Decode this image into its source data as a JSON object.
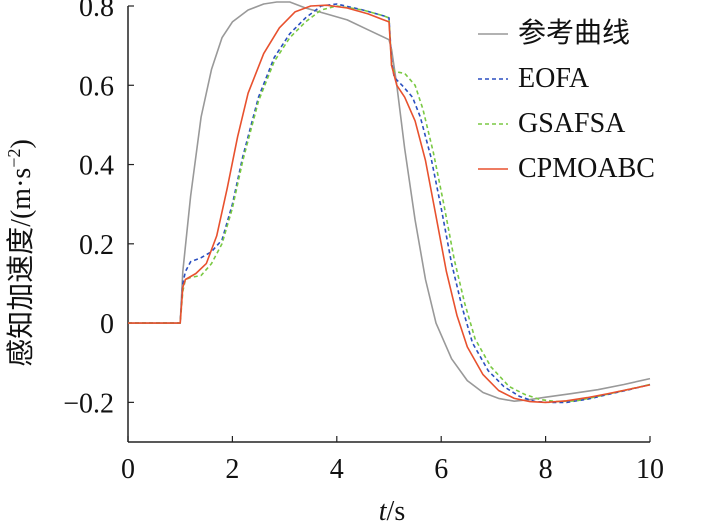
{
  "chart_data": {
    "type": "line",
    "xlabel_italic": "t",
    "xlabel_unit": "/s",
    "ylabel_text": "感知加速度/(m·s",
    "ylabel_sup": "−2",
    "ylabel_close": ")",
    "xlim": [
      0,
      10
    ],
    "ylim": [
      -0.3,
      0.8
    ],
    "x_ticks": [
      0,
      2,
      4,
      6,
      8,
      10
    ],
    "x_tick_labels": [
      "0",
      "2",
      "4",
      "6",
      "8",
      "10"
    ],
    "y_ticks": [
      -0.2,
      0,
      0.2,
      0.4,
      0.6,
      0.8
    ],
    "y_tick_labels": [
      "−0.2",
      "0",
      "0.2",
      "0.4",
      "0.6",
      "0.8"
    ],
    "grid": false,
    "legend_position": "top-right",
    "series": [
      {
        "name": "参考曲线",
        "color": "#999999",
        "dash": "solid",
        "points": [
          [
            0,
            0
          ],
          [
            1.0,
            0
          ],
          [
            1.05,
            0.13
          ],
          [
            1.2,
            0.32
          ],
          [
            1.4,
            0.52
          ],
          [
            1.6,
            0.64
          ],
          [
            1.8,
            0.72
          ],
          [
            2.0,
            0.76
          ],
          [
            2.3,
            0.79
          ],
          [
            2.6,
            0.805
          ],
          [
            2.85,
            0.81
          ],
          [
            3.1,
            0.81
          ],
          [
            3.4,
            0.795
          ],
          [
            3.8,
            0.78
          ],
          [
            4.2,
            0.765
          ],
          [
            4.6,
            0.74
          ],
          [
            5.0,
            0.715
          ],
          [
            5.05,
            0.69
          ],
          [
            5.15,
            0.6
          ],
          [
            5.3,
            0.44
          ],
          [
            5.5,
            0.26
          ],
          [
            5.7,
            0.11
          ],
          [
            5.9,
            0.0
          ],
          [
            6.2,
            -0.09
          ],
          [
            6.5,
            -0.145
          ],
          [
            6.8,
            -0.175
          ],
          [
            7.1,
            -0.19
          ],
          [
            7.4,
            -0.197
          ],
          [
            7.7,
            -0.193
          ],
          [
            8.0,
            -0.187
          ],
          [
            8.5,
            -0.178
          ],
          [
            9.0,
            -0.168
          ],
          [
            9.5,
            -0.155
          ],
          [
            10.0,
            -0.14
          ]
        ]
      },
      {
        "name": "EOFA",
        "color": "#2b4fc0",
        "dash": "dashed",
        "points": [
          [
            0,
            0
          ],
          [
            1.0,
            0
          ],
          [
            1.05,
            0.1
          ],
          [
            1.1,
            0.13
          ],
          [
            1.2,
            0.155
          ],
          [
            1.4,
            0.165
          ],
          [
            1.6,
            0.18
          ],
          [
            1.8,
            0.21
          ],
          [
            2.0,
            0.3
          ],
          [
            2.2,
            0.42
          ],
          [
            2.5,
            0.57
          ],
          [
            2.8,
            0.67
          ],
          [
            3.1,
            0.73
          ],
          [
            3.4,
            0.77
          ],
          [
            3.7,
            0.8
          ],
          [
            4.0,
            0.805
          ],
          [
            4.5,
            0.79
          ],
          [
            4.9,
            0.775
          ],
          [
            5.0,
            0.77
          ],
          [
            5.05,
            0.66
          ],
          [
            5.1,
            0.62
          ],
          [
            5.25,
            0.6
          ],
          [
            5.45,
            0.57
          ],
          [
            5.6,
            0.52
          ],
          [
            5.8,
            0.42
          ],
          [
            6.0,
            0.29
          ],
          [
            6.2,
            0.15
          ],
          [
            6.4,
            0.04
          ],
          [
            6.6,
            -0.05
          ],
          [
            6.9,
            -0.12
          ],
          [
            7.2,
            -0.16
          ],
          [
            7.5,
            -0.185
          ],
          [
            7.8,
            -0.198
          ],
          [
            8.1,
            -0.2
          ],
          [
            8.4,
            -0.2
          ],
          [
            8.8,
            -0.192
          ],
          [
            9.2,
            -0.18
          ],
          [
            9.6,
            -0.168
          ],
          [
            10.0,
            -0.155
          ]
        ]
      },
      {
        "name": "GSAFSA",
        "color": "#7ac943",
        "dash": "dashed",
        "points": [
          [
            0,
            0
          ],
          [
            1.0,
            0
          ],
          [
            1.05,
            0.08
          ],
          [
            1.1,
            0.11
          ],
          [
            1.2,
            0.115
          ],
          [
            1.4,
            0.12
          ],
          [
            1.6,
            0.15
          ],
          [
            1.8,
            0.2
          ],
          [
            2.0,
            0.29
          ],
          [
            2.2,
            0.41
          ],
          [
            2.5,
            0.56
          ],
          [
            2.8,
            0.66
          ],
          [
            3.1,
            0.72
          ],
          [
            3.4,
            0.76
          ],
          [
            3.7,
            0.79
          ],
          [
            4.0,
            0.8
          ],
          [
            4.5,
            0.79
          ],
          [
            4.9,
            0.775
          ],
          [
            5.0,
            0.77
          ],
          [
            5.05,
            0.65
          ],
          [
            5.1,
            0.635
          ],
          [
            5.3,
            0.63
          ],
          [
            5.5,
            0.6
          ],
          [
            5.65,
            0.54
          ],
          [
            5.85,
            0.43
          ],
          [
            6.05,
            0.3
          ],
          [
            6.25,
            0.16
          ],
          [
            6.45,
            0.05
          ],
          [
            6.65,
            -0.04
          ],
          [
            6.95,
            -0.11
          ],
          [
            7.3,
            -0.16
          ],
          [
            7.6,
            -0.18
          ],
          [
            7.9,
            -0.193
          ],
          [
            8.2,
            -0.198
          ],
          [
            8.6,
            -0.196
          ],
          [
            9.0,
            -0.185
          ],
          [
            9.5,
            -0.17
          ],
          [
            10.0,
            -0.155
          ]
        ]
      },
      {
        "name": "CPMOABC",
        "color": "#e8512e",
        "dash": "solid",
        "points": [
          [
            0,
            0
          ],
          [
            1.0,
            0
          ],
          [
            1.05,
            0.09
          ],
          [
            1.1,
            0.11
          ],
          [
            1.3,
            0.125
          ],
          [
            1.5,
            0.15
          ],
          [
            1.7,
            0.22
          ],
          [
            1.9,
            0.34
          ],
          [
            2.1,
            0.47
          ],
          [
            2.3,
            0.58
          ],
          [
            2.6,
            0.68
          ],
          [
            2.9,
            0.745
          ],
          [
            3.2,
            0.785
          ],
          [
            3.5,
            0.8
          ],
          [
            3.8,
            0.802
          ],
          [
            4.2,
            0.795
          ],
          [
            4.6,
            0.78
          ],
          [
            5.0,
            0.76
          ],
          [
            5.05,
            0.65
          ],
          [
            5.15,
            0.6
          ],
          [
            5.3,
            0.57
          ],
          [
            5.5,
            0.51
          ],
          [
            5.7,
            0.41
          ],
          [
            5.9,
            0.27
          ],
          [
            6.1,
            0.13
          ],
          [
            6.3,
            0.02
          ],
          [
            6.5,
            -0.06
          ],
          [
            6.8,
            -0.13
          ],
          [
            7.1,
            -0.17
          ],
          [
            7.4,
            -0.19
          ],
          [
            7.7,
            -0.198
          ],
          [
            8.0,
            -0.2
          ],
          [
            8.4,
            -0.196
          ],
          [
            8.8,
            -0.188
          ],
          [
            9.2,
            -0.178
          ],
          [
            9.6,
            -0.167
          ],
          [
            10.0,
            -0.156
          ]
        ]
      }
    ]
  }
}
